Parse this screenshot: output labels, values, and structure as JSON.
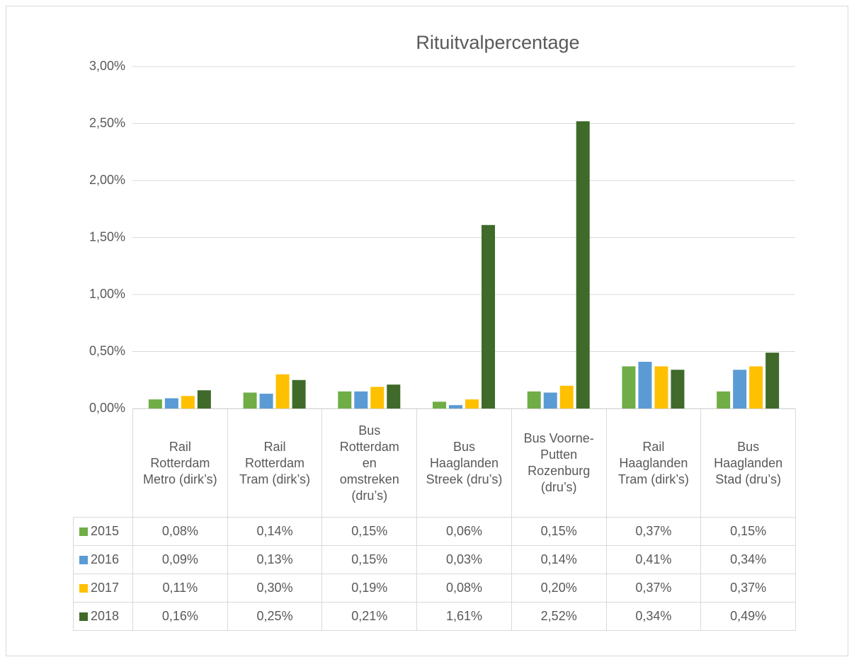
{
  "chart_data": {
    "type": "bar",
    "title": "Rituitvalpercentage",
    "categories": [
      "Rail Rotterdam Metro (dirk’s)",
      "Rail Rotterdam Tram (dirk’s)",
      "Bus Rotterdam en omstreken (dru’s)",
      "Bus Haaglanden Streek (dru’s)",
      "Bus Voorne-Putten Rozenburg (dru’s)",
      "Rail Haaglanden Tram (dirk’s)",
      "Bus Haaglanden Stad (dru’s)"
    ],
    "series": [
      {
        "name": "2015",
        "color": "#70ad47",
        "values": [
          0.08,
          0.14,
          0.15,
          0.06,
          0.15,
          0.37,
          0.15
        ],
        "value_labels": [
          "0,08%",
          "0,14%",
          "0,15%",
          "0,06%",
          "0,15%",
          "0,37%",
          "0,15%"
        ]
      },
      {
        "name": "2016",
        "color": "#5b9bd5",
        "values": [
          0.09,
          0.13,
          0.15,
          0.03,
          0.14,
          0.41,
          0.34
        ],
        "value_labels": [
          "0,09%",
          "0,13%",
          "0,15%",
          "0,03%",
          "0,14%",
          "0,41%",
          "0,34%"
        ]
      },
      {
        "name": "2017",
        "color": "#ffc000",
        "values": [
          0.11,
          0.3,
          0.19,
          0.08,
          0.2,
          0.37,
          0.37
        ],
        "value_labels": [
          "0,11%",
          "0,30%",
          "0,19%",
          "0,08%",
          "0,20%",
          "0,37%",
          "0,37%"
        ]
      },
      {
        "name": "2018",
        "color": "#3f6a2a",
        "values": [
          0.16,
          0.25,
          0.21,
          1.61,
          2.52,
          0.34,
          0.49
        ],
        "value_labels": [
          "0,16%",
          "0,25%",
          "0,21%",
          "1,61%",
          "2,52%",
          "0,34%",
          "0,49%"
        ]
      }
    ],
    "ylim": [
      0,
      3
    ],
    "yticks": [
      {
        "value": 0,
        "label": "0,00%"
      },
      {
        "value": 0.5,
        "label": "0,50%"
      },
      {
        "value": 1,
        "label": "1,00%"
      },
      {
        "value": 1.5,
        "label": "1,50%"
      },
      {
        "value": 2,
        "label": "2,00%"
      },
      {
        "value": 2.5,
        "label": "2,50%"
      },
      {
        "value": 3,
        "label": "3,00%"
      }
    ],
    "grid": true
  }
}
